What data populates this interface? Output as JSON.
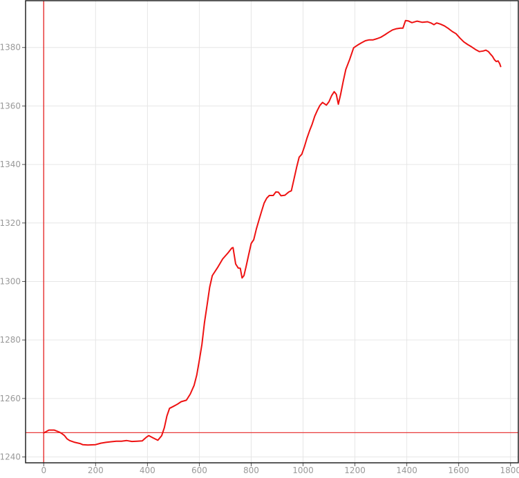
{
  "chart_data": {
    "type": "line",
    "title": "",
    "xlabel": "",
    "ylabel": "",
    "xlim": [
      -70,
      1830
    ],
    "ylim": [
      1238,
      1396
    ],
    "xticks": [
      0,
      200,
      400,
      600,
      800,
      1000,
      1200,
      1400,
      1600,
      1800
    ],
    "yticks": [
      1240,
      1260,
      1280,
      1300,
      1320,
      1340,
      1360,
      1380
    ],
    "grid": true,
    "legend": "none",
    "reference_lines": {
      "x": 0,
      "y": 1248.3,
      "color": "#e83a3a"
    },
    "series": [
      {
        "color": "#ee1111",
        "points": [
          [
            0,
            1248.2
          ],
          [
            20,
            1249.2
          ],
          [
            40,
            1249.2
          ],
          [
            60,
            1248.5
          ],
          [
            70,
            1248.0
          ],
          [
            80,
            1247.3
          ],
          [
            90,
            1246.2
          ],
          [
            100,
            1245.6
          ],
          [
            120,
            1245.0
          ],
          [
            140,
            1244.6
          ],
          [
            150,
            1244.2
          ],
          [
            170,
            1244.1
          ],
          [
            200,
            1244.2
          ],
          [
            220,
            1244.7
          ],
          [
            240,
            1245.0
          ],
          [
            260,
            1245.2
          ],
          [
            280,
            1245.4
          ],
          [
            300,
            1245.4
          ],
          [
            320,
            1245.6
          ],
          [
            340,
            1245.3
          ],
          [
            360,
            1245.4
          ],
          [
            380,
            1245.5
          ],
          [
            395,
            1246.7
          ],
          [
            405,
            1247.3
          ],
          [
            420,
            1246.6
          ],
          [
            440,
            1245.7
          ],
          [
            455,
            1247.3
          ],
          [
            465,
            1250.0
          ],
          [
            475,
            1254.0
          ],
          [
            485,
            1256.6
          ],
          [
            500,
            1257.3
          ],
          [
            515,
            1258.0
          ],
          [
            530,
            1258.9
          ],
          [
            550,
            1259.4
          ],
          [
            565,
            1261.5
          ],
          [
            580,
            1264.5
          ],
          [
            590,
            1268.0
          ],
          [
            600,
            1273.0
          ],
          [
            610,
            1278.5
          ],
          [
            620,
            1286.0
          ],
          [
            630,
            1292.0
          ],
          [
            640,
            1298.0
          ],
          [
            650,
            1302.0
          ],
          [
            670,
            1304.7
          ],
          [
            690,
            1307.7
          ],
          [
            710,
            1309.7
          ],
          [
            725,
            1311.4
          ],
          [
            730,
            1311.6
          ],
          [
            740,
            1306.0
          ],
          [
            750,
            1304.6
          ],
          [
            758,
            1304.5
          ],
          [
            765,
            1301.2
          ],
          [
            772,
            1302.0
          ],
          [
            780,
            1305.0
          ],
          [
            790,
            1309.0
          ],
          [
            800,
            1313.0
          ],
          [
            810,
            1314.3
          ],
          [
            820,
            1318.0
          ],
          [
            830,
            1321.0
          ],
          [
            840,
            1324.0
          ],
          [
            850,
            1326.8
          ],
          [
            860,
            1328.5
          ],
          [
            870,
            1329.4
          ],
          [
            885,
            1329.4
          ],
          [
            895,
            1330.6
          ],
          [
            905,
            1330.5
          ],
          [
            915,
            1329.3
          ],
          [
            930,
            1329.5
          ],
          [
            945,
            1330.6
          ],
          [
            955,
            1331.0
          ],
          [
            965,
            1335.0
          ],
          [
            975,
            1339.0
          ],
          [
            985,
            1342.5
          ],
          [
            995,
            1343.5
          ],
          [
            1005,
            1346.0
          ],
          [
            1015,
            1349.0
          ],
          [
            1025,
            1351.5
          ],
          [
            1035,
            1353.8
          ],
          [
            1045,
            1356.5
          ],
          [
            1055,
            1358.5
          ],
          [
            1065,
            1360.2
          ],
          [
            1075,
            1361.2
          ],
          [
            1090,
            1360.3
          ],
          [
            1100,
            1361.5
          ],
          [
            1110,
            1363.5
          ],
          [
            1120,
            1364.9
          ],
          [
            1128,
            1364.0
          ],
          [
            1136,
            1360.6
          ],
          [
            1145,
            1364.0
          ],
          [
            1155,
            1368.5
          ],
          [
            1165,
            1372.5
          ],
          [
            1180,
            1376.0
          ],
          [
            1195,
            1379.9
          ],
          [
            1210,
            1380.8
          ],
          [
            1225,
            1381.6
          ],
          [
            1240,
            1382.3
          ],
          [
            1255,
            1382.6
          ],
          [
            1270,
            1382.6
          ],
          [
            1285,
            1383.0
          ],
          [
            1300,
            1383.5
          ],
          [
            1315,
            1384.3
          ],
          [
            1330,
            1385.2
          ],
          [
            1345,
            1386.0
          ],
          [
            1360,
            1386.4
          ],
          [
            1375,
            1386.6
          ],
          [
            1385,
            1386.6
          ],
          [
            1395,
            1389.2
          ],
          [
            1405,
            1389.1
          ],
          [
            1420,
            1388.5
          ],
          [
            1440,
            1389.0
          ],
          [
            1460,
            1388.6
          ],
          [
            1480,
            1388.8
          ],
          [
            1495,
            1388.3
          ],
          [
            1505,
            1387.8
          ],
          [
            1515,
            1388.4
          ],
          [
            1530,
            1388.0
          ],
          [
            1545,
            1387.4
          ],
          [
            1560,
            1386.5
          ],
          [
            1575,
            1385.5
          ],
          [
            1590,
            1384.7
          ],
          [
            1605,
            1383.2
          ],
          [
            1620,
            1381.9
          ],
          [
            1635,
            1381.0
          ],
          [
            1650,
            1380.2
          ],
          [
            1665,
            1379.3
          ],
          [
            1680,
            1378.6
          ],
          [
            1695,
            1378.8
          ],
          [
            1705,
            1379.1
          ],
          [
            1715,
            1378.6
          ],
          [
            1722,
            1377.8
          ],
          [
            1730,
            1377.0
          ],
          [
            1738,
            1375.8
          ],
          [
            1745,
            1375.2
          ],
          [
            1752,
            1375.4
          ],
          [
            1758,
            1374.5
          ],
          [
            1762,
            1373.5
          ]
        ]
      }
    ]
  }
}
